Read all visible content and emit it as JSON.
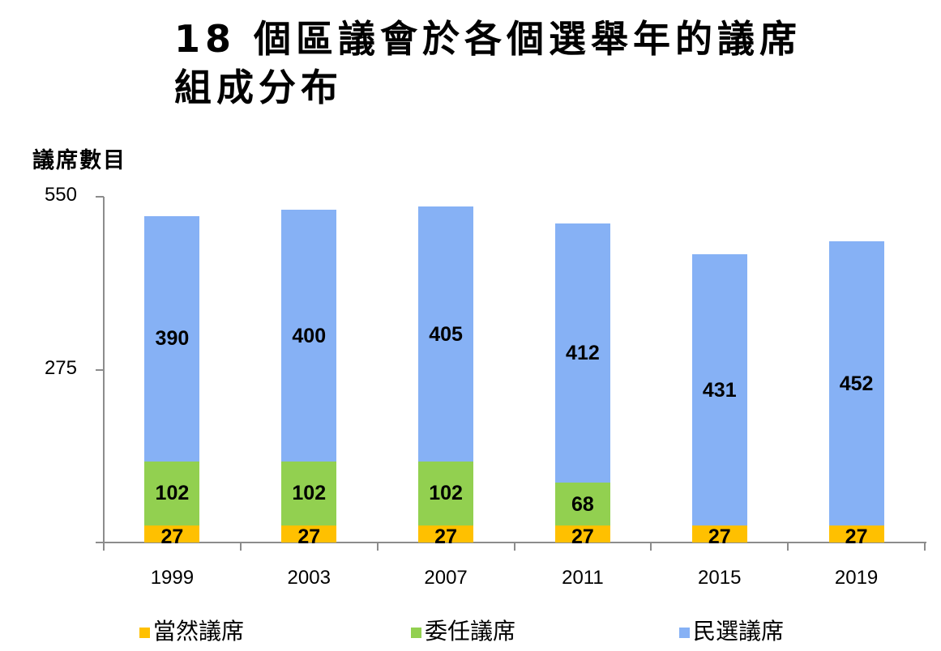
{
  "title": "18 個區議會於各個選舉年的議席組成分佈",
  "title_lines": [
    "18 個區議會於各個選舉年的議席",
    "組成分布"
  ],
  "y_axis": {
    "label": "議席數目",
    "ticks": [
      {
        "value": 550,
        "label": "550"
      },
      {
        "value": 275,
        "label": "275"
      }
    ]
  },
  "legend": [
    {
      "label": "當然議席",
      "color": "#FFC000"
    },
    {
      "label": "委任議席",
      "color": "#92D050"
    },
    {
      "label": "民選議席",
      "color": "#86B1F5"
    }
  ],
  "chart_data": {
    "type": "bar",
    "stacked": true,
    "title": "18 個區議會於各個選舉年的議席組成分布",
    "xlabel": "",
    "ylabel": "議席數目",
    "ylim": [
      0,
      550
    ],
    "yticks": [
      275,
      550
    ],
    "grid": false,
    "legend_position": "bottom",
    "categories": [
      "1999",
      "2003",
      "2007",
      "2011",
      "2015",
      "2019"
    ],
    "series": [
      {
        "name": "當然議席",
        "color": "#FFC000",
        "values": [
          27,
          27,
          27,
          27,
          27,
          27
        ],
        "labels": [
          "27",
          "27",
          "27",
          "27",
          "27",
          "27"
        ]
      },
      {
        "name": "委任議席",
        "color": "#92D050",
        "values": [
          102,
          102,
          102,
          68,
          0,
          0
        ],
        "labels": [
          "102",
          "102",
          "102",
          "68",
          "",
          ""
        ]
      },
      {
        "name": "民選議席",
        "color": "#86B1F5",
        "values": [
          390,
          400,
          405,
          412,
          431,
          452
        ],
        "labels": [
          "390",
          "400",
          "405",
          "412",
          "431",
          "452"
        ]
      }
    ]
  }
}
